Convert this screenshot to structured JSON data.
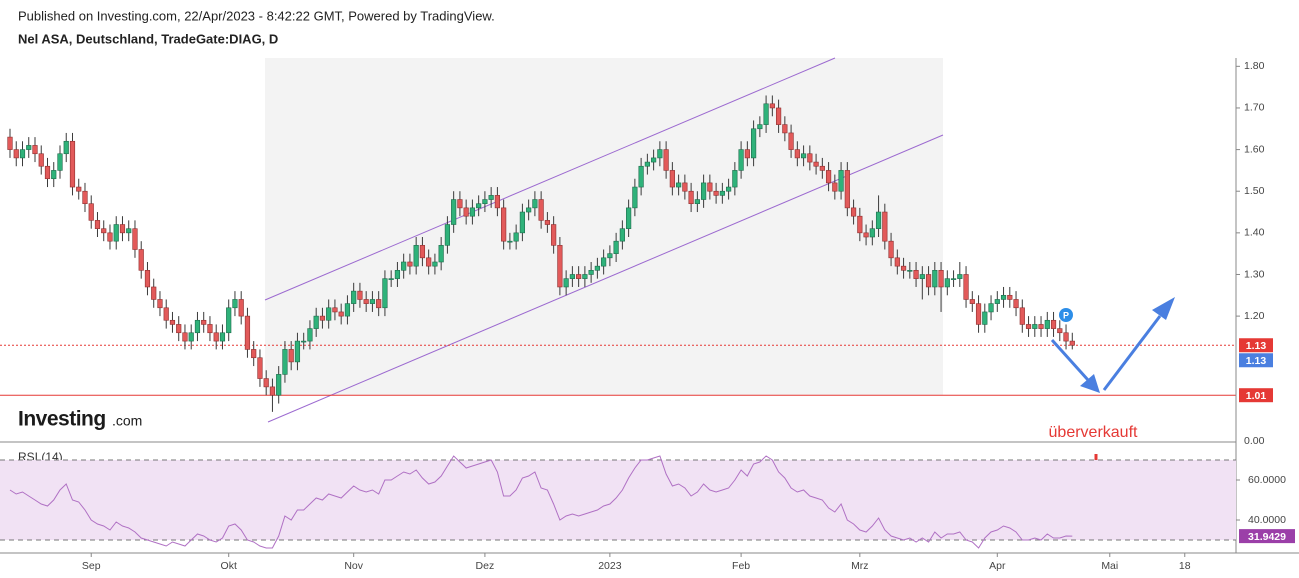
{
  "header": {
    "published": "Published on Investing.com, 22/Apr/2023 - 8:42:22 GMT, Powered by TradingView.",
    "instrument": "Nel ASA, Deutschland, TradeGate:DIAG, D"
  },
  "logo": {
    "brand": "Investing",
    "suffix": ".com"
  },
  "marker_label": "P",
  "chart_data": [
    {
      "type": "candlestick",
      "colors": {
        "up": "#2fb27a",
        "down": "#e25a5a"
      },
      "ylim": [
        0.9,
        1.82
      ],
      "yticks": [
        {
          "value": 1.2,
          "label": "1.20"
        },
        {
          "value": 1.3,
          "label": "1.30"
        },
        {
          "value": 1.4,
          "label": "1.40"
        },
        {
          "value": 1.5,
          "label": "1.50"
        },
        {
          "value": 1.6,
          "label": "1.60"
        },
        {
          "value": 1.7,
          "label": "1.70"
        },
        {
          "value": 1.8,
          "label": "1.80"
        }
      ],
      "pane_scale_label": "0.00",
      "xlim": [
        -1.6,
        196.2
      ],
      "xticks": [
        {
          "value": 13,
          "label": "Sep"
        },
        {
          "value": 35,
          "label": "Okt"
        },
        {
          "value": 55,
          "label": "Nov"
        },
        {
          "value": 76,
          "label": "Dez"
        },
        {
          "value": 96,
          "label": "2023"
        },
        {
          "value": 117,
          "label": "Feb"
        },
        {
          "value": 136,
          "label": "Mrz"
        },
        {
          "value": 158,
          "label": "Apr"
        },
        {
          "value": 176,
          "label": "Mai"
        },
        {
          "value": 188,
          "label": "18"
        }
      ],
      "price_lines": [
        {
          "value": 1.13,
          "color": "#e53935",
          "style": "dotted"
        },
        {
          "value": 1.01,
          "color": "#e53935",
          "style": "solid"
        }
      ],
      "badges": [
        {
          "value": 1.13,
          "color": "#e53935"
        },
        {
          "value": 1.13,
          "color": "#4a7fe0"
        },
        {
          "value": 1.01,
          "color": "#e53935"
        }
      ],
      "annotation": "überverkauft",
      "candles": [
        [
          1.63,
          1.65,
          1.58,
          1.6
        ],
        [
          1.6,
          1.62,
          1.56,
          1.58
        ],
        [
          1.58,
          1.62,
          1.56,
          1.6
        ],
        [
          1.6,
          1.63,
          1.58,
          1.61
        ],
        [
          1.61,
          1.63,
          1.57,
          1.59
        ],
        [
          1.59,
          1.61,
          1.54,
          1.56
        ],
        [
          1.56,
          1.58,
          1.51,
          1.53
        ],
        [
          1.53,
          1.57,
          1.51,
          1.55
        ],
        [
          1.55,
          1.61,
          1.53,
          1.59
        ],
        [
          1.59,
          1.64,
          1.57,
          1.62
        ],
        [
          1.62,
          1.64,
          1.49,
          1.51
        ],
        [
          1.51,
          1.53,
          1.48,
          1.5
        ],
        [
          1.5,
          1.52,
          1.45,
          1.47
        ],
        [
          1.47,
          1.49,
          1.41,
          1.43
        ],
        [
          1.43,
          1.45,
          1.39,
          1.41
        ],
        [
          1.41,
          1.43,
          1.38,
          1.4
        ],
        [
          1.4,
          1.42,
          1.36,
          1.38
        ],
        [
          1.38,
          1.44,
          1.36,
          1.42
        ],
        [
          1.42,
          1.44,
          1.38,
          1.4
        ],
        [
          1.4,
          1.43,
          1.38,
          1.41
        ],
        [
          1.41,
          1.43,
          1.34,
          1.36
        ],
        [
          1.36,
          1.38,
          1.29,
          1.31
        ],
        [
          1.31,
          1.33,
          1.25,
          1.27
        ],
        [
          1.27,
          1.29,
          1.22,
          1.24
        ],
        [
          1.24,
          1.26,
          1.2,
          1.22
        ],
        [
          1.22,
          1.24,
          1.17,
          1.19
        ],
        [
          1.19,
          1.21,
          1.16,
          1.18
        ],
        [
          1.18,
          1.2,
          1.14,
          1.16
        ],
        [
          1.16,
          1.18,
          1.12,
          1.14
        ],
        [
          1.14,
          1.18,
          1.12,
          1.16
        ],
        [
          1.16,
          1.21,
          1.14,
          1.19
        ],
        [
          1.19,
          1.21,
          1.16,
          1.18
        ],
        [
          1.18,
          1.2,
          1.14,
          1.16
        ],
        [
          1.16,
          1.18,
          1.12,
          1.14
        ],
        [
          1.14,
          1.18,
          1.12,
          1.16
        ],
        [
          1.16,
          1.24,
          1.14,
          1.22
        ],
        [
          1.22,
          1.26,
          1.2,
          1.24
        ],
        [
          1.24,
          1.26,
          1.18,
          1.2
        ],
        [
          1.2,
          1.22,
          1.1,
          1.12
        ],
        [
          1.12,
          1.14,
          1.08,
          1.1
        ],
        [
          1.1,
          1.12,
          1.03,
          1.05
        ],
        [
          1.05,
          1.07,
          1.01,
          1.03
        ],
        [
          1.03,
          1.05,
          0.97,
          1.01
        ],
        [
          1.01,
          1.08,
          0.99,
          1.06
        ],
        [
          1.06,
          1.14,
          1.04,
          1.12
        ],
        [
          1.12,
          1.14,
          1.07,
          1.09
        ],
        [
          1.09,
          1.16,
          1.07,
          1.14
        ],
        [
          1.14,
          1.16,
          1.12,
          1.14
        ],
        [
          1.14,
          1.19,
          1.12,
          1.17
        ],
        [
          1.17,
          1.22,
          1.15,
          1.2
        ],
        [
          1.2,
          1.22,
          1.17,
          1.19
        ],
        [
          1.19,
          1.24,
          1.17,
          1.22
        ],
        [
          1.22,
          1.24,
          1.19,
          1.21
        ],
        [
          1.21,
          1.23,
          1.18,
          1.2
        ],
        [
          1.2,
          1.25,
          1.18,
          1.23
        ],
        [
          1.23,
          1.28,
          1.21,
          1.26
        ],
        [
          1.26,
          1.28,
          1.22,
          1.24
        ],
        [
          1.24,
          1.26,
          1.21,
          1.23
        ],
        [
          1.23,
          1.26,
          1.21,
          1.24
        ],
        [
          1.24,
          1.26,
          1.2,
          1.22
        ],
        [
          1.22,
          1.31,
          1.2,
          1.29
        ],
        [
          1.29,
          1.31,
          1.27,
          1.29
        ],
        [
          1.29,
          1.33,
          1.27,
          1.31
        ],
        [
          1.31,
          1.35,
          1.29,
          1.33
        ],
        [
          1.33,
          1.35,
          1.3,
          1.32
        ],
        [
          1.32,
          1.39,
          1.3,
          1.37
        ],
        [
          1.37,
          1.39,
          1.32,
          1.34
        ],
        [
          1.34,
          1.36,
          1.3,
          1.32
        ],
        [
          1.32,
          1.35,
          1.3,
          1.33
        ],
        [
          1.33,
          1.39,
          1.31,
          1.37
        ],
        [
          1.37,
          1.44,
          1.35,
          1.42
        ],
        [
          1.42,
          1.5,
          1.4,
          1.48
        ],
        [
          1.48,
          1.5,
          1.44,
          1.46
        ],
        [
          1.46,
          1.48,
          1.42,
          1.44
        ],
        [
          1.44,
          1.48,
          1.42,
          1.46
        ],
        [
          1.46,
          1.49,
          1.44,
          1.47
        ],
        [
          1.47,
          1.5,
          1.45,
          1.48
        ],
        [
          1.48,
          1.51,
          1.46,
          1.49
        ],
        [
          1.49,
          1.51,
          1.44,
          1.46
        ],
        [
          1.46,
          1.48,
          1.36,
          1.38
        ],
        [
          1.38,
          1.4,
          1.36,
          1.38
        ],
        [
          1.38,
          1.42,
          1.36,
          1.4
        ],
        [
          1.4,
          1.47,
          1.38,
          1.45
        ],
        [
          1.45,
          1.48,
          1.43,
          1.46
        ],
        [
          1.46,
          1.5,
          1.44,
          1.48
        ],
        [
          1.48,
          1.5,
          1.41,
          1.43
        ],
        [
          1.43,
          1.45,
          1.4,
          1.42
        ],
        [
          1.42,
          1.44,
          1.35,
          1.37
        ],
        [
          1.37,
          1.39,
          1.25,
          1.27
        ],
        [
          1.27,
          1.31,
          1.25,
          1.29
        ],
        [
          1.29,
          1.32,
          1.27,
          1.3
        ],
        [
          1.3,
          1.32,
          1.27,
          1.29
        ],
        [
          1.29,
          1.32,
          1.27,
          1.3
        ],
        [
          1.3,
          1.33,
          1.28,
          1.31
        ],
        [
          1.31,
          1.34,
          1.29,
          1.32
        ],
        [
          1.32,
          1.36,
          1.3,
          1.34
        ],
        [
          1.34,
          1.37,
          1.32,
          1.35
        ],
        [
          1.35,
          1.4,
          1.33,
          1.38
        ],
        [
          1.38,
          1.43,
          1.36,
          1.41
        ],
        [
          1.41,
          1.48,
          1.39,
          1.46
        ],
        [
          1.46,
          1.53,
          1.44,
          1.51
        ],
        [
          1.51,
          1.58,
          1.49,
          1.56
        ],
        [
          1.56,
          1.59,
          1.54,
          1.57
        ],
        [
          1.57,
          1.6,
          1.55,
          1.58
        ],
        [
          1.58,
          1.62,
          1.56,
          1.6
        ],
        [
          1.6,
          1.62,
          1.53,
          1.55
        ],
        [
          1.55,
          1.57,
          1.49,
          1.51
        ],
        [
          1.51,
          1.54,
          1.49,
          1.52
        ],
        [
          1.52,
          1.54,
          1.48,
          1.5
        ],
        [
          1.5,
          1.52,
          1.45,
          1.47
        ],
        [
          1.47,
          1.5,
          1.45,
          1.48
        ],
        [
          1.48,
          1.54,
          1.46,
          1.52
        ],
        [
          1.52,
          1.54,
          1.48,
          1.5
        ],
        [
          1.5,
          1.52,
          1.47,
          1.49
        ],
        [
          1.49,
          1.52,
          1.47,
          1.5
        ],
        [
          1.5,
          1.53,
          1.48,
          1.51
        ],
        [
          1.51,
          1.57,
          1.49,
          1.55
        ],
        [
          1.55,
          1.62,
          1.53,
          1.6
        ],
        [
          1.6,
          1.62,
          1.56,
          1.58
        ],
        [
          1.58,
          1.67,
          1.56,
          1.65
        ],
        [
          1.65,
          1.68,
          1.63,
          1.66
        ],
        [
          1.66,
          1.73,
          1.64,
          1.71
        ],
        [
          1.71,
          1.73,
          1.68,
          1.7
        ],
        [
          1.7,
          1.72,
          1.64,
          1.66
        ],
        [
          1.66,
          1.68,
          1.62,
          1.64
        ],
        [
          1.64,
          1.66,
          1.58,
          1.6
        ],
        [
          1.6,
          1.62,
          1.56,
          1.58
        ],
        [
          1.58,
          1.61,
          1.56,
          1.59
        ],
        [
          1.59,
          1.61,
          1.55,
          1.57
        ],
        [
          1.57,
          1.59,
          1.54,
          1.56
        ],
        [
          1.56,
          1.58,
          1.53,
          1.55
        ],
        [
          1.55,
          1.57,
          1.5,
          1.52
        ],
        [
          1.52,
          1.54,
          1.48,
          1.5
        ],
        [
          1.5,
          1.57,
          1.48,
          1.55
        ],
        [
          1.55,
          1.57,
          1.44,
          1.46
        ],
        [
          1.46,
          1.48,
          1.42,
          1.44
        ],
        [
          1.44,
          1.46,
          1.38,
          1.4
        ],
        [
          1.4,
          1.42,
          1.37,
          1.39
        ],
        [
          1.39,
          1.43,
          1.37,
          1.41
        ],
        [
          1.41,
          1.49,
          1.39,
          1.45
        ],
        [
          1.45,
          1.47,
          1.36,
          1.38
        ],
        [
          1.38,
          1.4,
          1.32,
          1.34
        ],
        [
          1.34,
          1.36,
          1.3,
          1.32
        ],
        [
          1.32,
          1.34,
          1.29,
          1.31
        ],
        [
          1.31,
          1.33,
          1.29,
          1.31
        ],
        [
          1.31,
          1.33,
          1.27,
          1.29
        ],
        [
          1.29,
          1.32,
          1.24,
          1.3
        ],
        [
          1.3,
          1.32,
          1.25,
          1.27
        ],
        [
          1.27,
          1.33,
          1.25,
          1.31
        ],
        [
          1.31,
          1.33,
          1.21,
          1.27
        ],
        [
          1.27,
          1.31,
          1.25,
          1.29
        ],
        [
          1.29,
          1.31,
          1.27,
          1.29
        ],
        [
          1.29,
          1.33,
          1.27,
          1.3
        ],
        [
          1.3,
          1.32,
          1.22,
          1.24
        ],
        [
          1.24,
          1.26,
          1.21,
          1.23
        ],
        [
          1.23,
          1.25,
          1.16,
          1.18
        ],
        [
          1.18,
          1.23,
          1.16,
          1.21
        ],
        [
          1.21,
          1.25,
          1.19,
          1.23
        ],
        [
          1.23,
          1.26,
          1.21,
          1.24
        ],
        [
          1.24,
          1.27,
          1.22,
          1.25
        ],
        [
          1.25,
          1.27,
          1.22,
          1.24
        ],
        [
          1.24,
          1.26,
          1.2,
          1.22
        ],
        [
          1.22,
          1.24,
          1.16,
          1.18
        ],
        [
          1.18,
          1.2,
          1.15,
          1.17
        ],
        [
          1.17,
          1.2,
          1.15,
          1.18
        ],
        [
          1.18,
          1.2,
          1.15,
          1.17
        ],
        [
          1.17,
          1.21,
          1.15,
          1.19
        ],
        [
          1.19,
          1.21,
          1.15,
          1.17
        ],
        [
          1.17,
          1.19,
          1.14,
          1.16
        ],
        [
          1.16,
          1.18,
          1.12,
          1.14
        ],
        [
          1.14,
          1.16,
          1.12,
          1.13
        ]
      ]
    },
    {
      "type": "line",
      "title": "RSI (14)",
      "color": "#b071c4",
      "ylim": [
        23.5,
        78.5
      ],
      "yticks": [
        {
          "value": 40,
          "label": "40.0000"
        },
        {
          "value": 60,
          "label": "60.0000"
        }
      ],
      "bands": [
        30,
        70
      ],
      "last_label": 31.9429,
      "values": [
        55,
        53,
        54,
        52,
        50,
        48,
        47,
        50,
        55,
        58,
        50,
        49,
        45,
        40,
        38,
        37,
        35,
        39,
        37,
        36,
        34,
        31,
        30,
        29,
        28,
        27,
        29,
        28,
        27,
        30,
        33,
        32,
        30,
        29,
        31,
        37,
        38,
        35,
        30,
        29,
        27,
        26,
        26,
        32,
        42,
        40,
        45,
        45,
        48,
        51,
        50,
        53,
        52,
        51,
        54,
        57,
        55,
        54,
        55,
        53,
        60,
        60,
        62,
        64,
        63,
        65,
        61,
        58,
        59,
        62,
        67,
        72,
        69,
        66,
        67,
        68,
        69,
        70,
        64,
        52,
        52,
        55,
        61,
        62,
        64,
        56,
        55,
        48,
        40,
        42,
        43,
        42,
        43,
        44,
        45,
        47,
        48,
        51,
        55,
        61,
        66,
        70,
        70,
        71,
        72,
        63,
        57,
        58,
        56,
        52,
        54,
        58,
        55,
        54,
        55,
        56,
        60,
        65,
        62,
        68,
        69,
        72,
        70,
        64,
        61,
        56,
        54,
        55,
        52,
        51,
        50,
        46,
        44,
        48,
        40,
        38,
        35,
        34,
        37,
        41,
        35,
        32,
        31,
        30,
        31,
        29,
        31,
        29,
        34,
        31,
        33,
        33,
        34,
        30,
        29,
        26,
        31,
        34,
        35,
        37,
        36,
        34,
        30,
        30,
        31,
        30,
        33,
        31,
        31,
        32,
        31.9429
      ]
    }
  ]
}
